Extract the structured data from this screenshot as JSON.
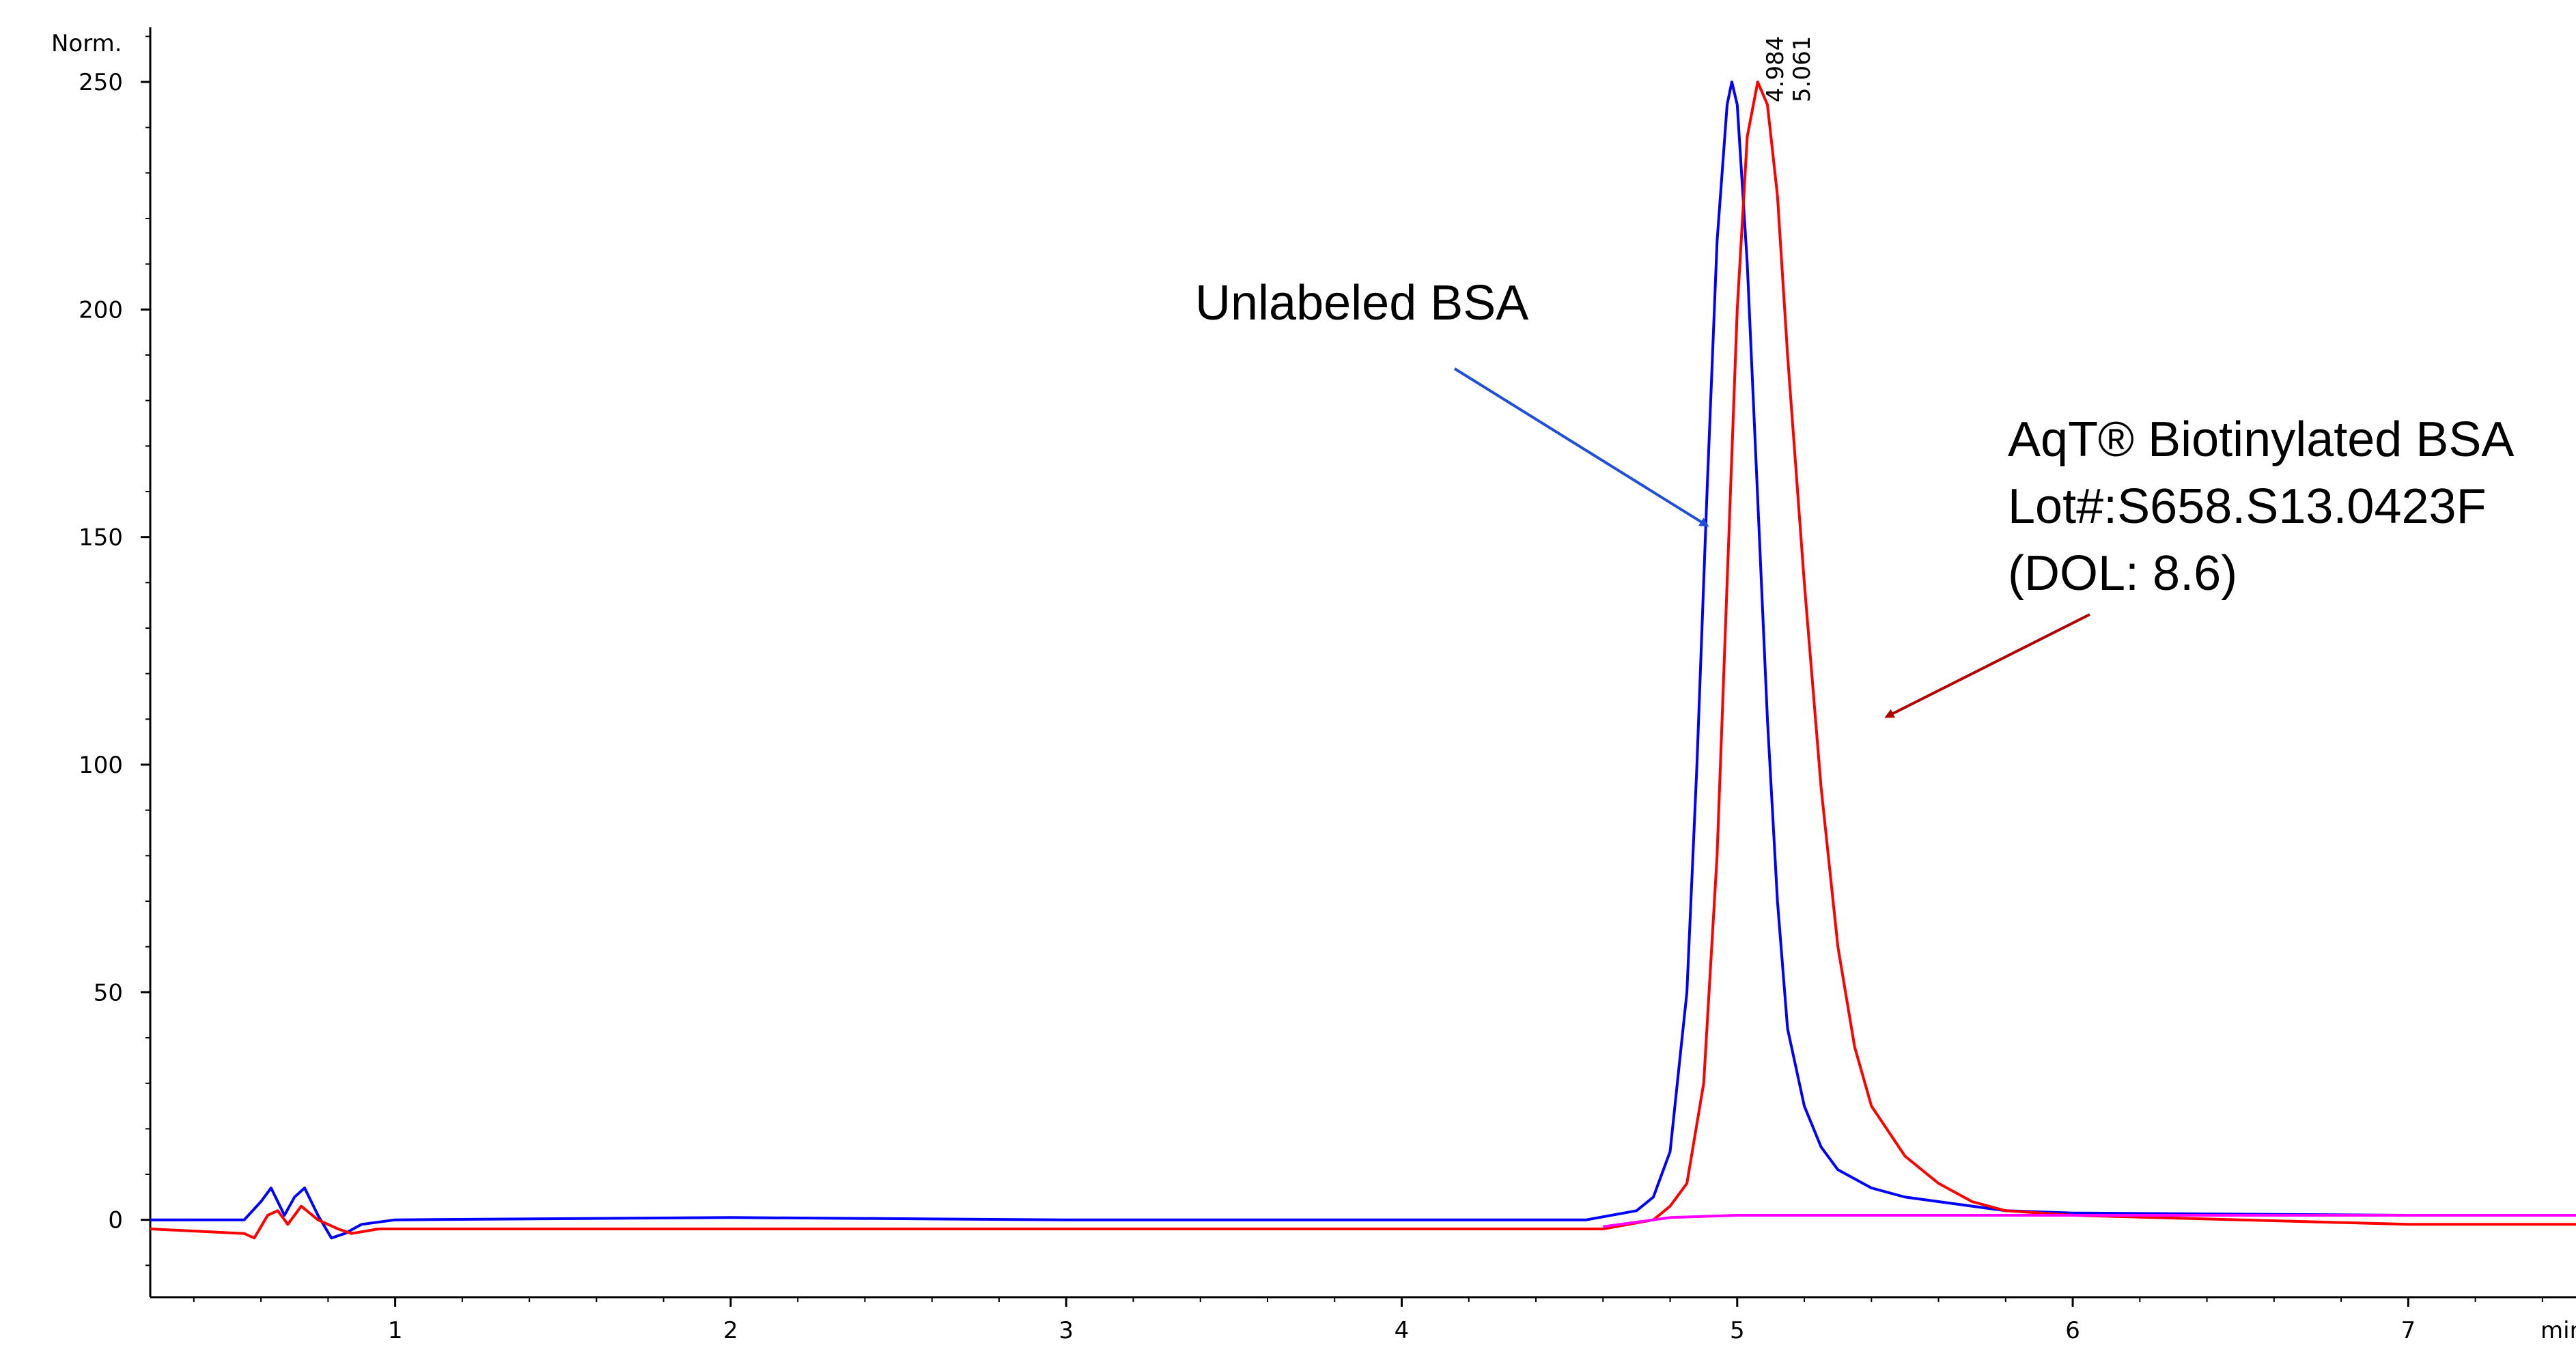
{
  "chart_data": {
    "type": "line",
    "y_unit_label": "Norm.",
    "x_unit_label": "min",
    "xlim": [
      0.27,
      7.5
    ],
    "ylim": [
      -17,
      262
    ],
    "x_ticks": [
      1,
      2,
      3,
      4,
      5,
      6,
      7
    ],
    "y_ticks": [
      0,
      50,
      100,
      150,
      200,
      250
    ],
    "grid": false,
    "peak_labels": [
      "4.984",
      "5.061"
    ],
    "annotations": {
      "unlabeled": "Unlabeled BSA",
      "biotin_line1": "AqT® Biotinylated BSA",
      "biotin_line2": "Lot#:S658.S13.0423F",
      "biotin_line3": "(DOL: 8.6)"
    },
    "series": [
      {
        "color": "#0000ff",
        "points": [
          [
            0.27,
            0
          ],
          [
            0.55,
            0
          ],
          [
            0.6,
            4
          ],
          [
            0.63,
            7
          ],
          [
            0.67,
            1
          ],
          [
            0.7,
            5
          ],
          [
            0.73,
            7
          ],
          [
            0.77,
            1
          ],
          [
            0.81,
            -4
          ],
          [
            0.85,
            -3
          ],
          [
            0.9,
            -1
          ],
          [
            1.0,
            0
          ],
          [
            2.0,
            0.5
          ],
          [
            3.0,
            0
          ],
          [
            4.0,
            0
          ],
          [
            4.55,
            0
          ],
          [
            4.7,
            2
          ],
          [
            4.75,
            5
          ],
          [
            4.8,
            15
          ],
          [
            4.85,
            50
          ],
          [
            4.88,
            100
          ],
          [
            4.91,
            160
          ],
          [
            4.94,
            215
          ],
          [
            4.97,
            245
          ],
          [
            4.984,
            250
          ],
          [
            5.0,
            245
          ],
          [
            5.03,
            210
          ],
          [
            5.06,
            160
          ],
          [
            5.09,
            110
          ],
          [
            5.12,
            70
          ],
          [
            5.15,
            42
          ],
          [
            5.2,
            25
          ],
          [
            5.25,
            16
          ],
          [
            5.3,
            11
          ],
          [
            5.4,
            7
          ],
          [
            5.5,
            5
          ],
          [
            5.6,
            4
          ],
          [
            5.8,
            2
          ],
          [
            6.0,
            1.5
          ],
          [
            7.0,
            1
          ],
          [
            7.5,
            1
          ]
        ]
      },
      {
        "color": "#ff0000",
        "points": [
          [
            0.27,
            -2
          ],
          [
            0.55,
            -3
          ],
          [
            0.58,
            -4
          ],
          [
            0.62,
            1
          ],
          [
            0.65,
            2
          ],
          [
            0.68,
            -1
          ],
          [
            0.72,
            3
          ],
          [
            0.77,
            0
          ],
          [
            0.83,
            -2
          ],
          [
            0.87,
            -3
          ],
          [
            0.95,
            -2
          ],
          [
            1.0,
            -2
          ],
          [
            4.6,
            -2
          ],
          [
            4.75,
            0
          ],
          [
            4.8,
            3
          ],
          [
            4.85,
            8
          ],
          [
            4.9,
            30
          ],
          [
            4.94,
            80
          ],
          [
            4.97,
            140
          ],
          [
            5.0,
            200
          ],
          [
            5.03,
            238
          ],
          [
            5.061,
            250
          ],
          [
            5.09,
            245
          ],
          [
            5.12,
            225
          ],
          [
            5.15,
            190
          ],
          [
            5.2,
            140
          ],
          [
            5.25,
            95
          ],
          [
            5.3,
            60
          ],
          [
            5.35,
            38
          ],
          [
            5.4,
            25
          ],
          [
            5.5,
            14
          ],
          [
            5.6,
            8
          ],
          [
            5.7,
            4
          ],
          [
            5.8,
            2
          ],
          [
            6.0,
            1
          ],
          [
            6.5,
            0
          ],
          [
            7.0,
            -1
          ],
          [
            7.5,
            -1
          ]
        ]
      },
      {
        "color": "#ff00ff",
        "points": [
          [
            4.6,
            -1.5
          ],
          [
            4.8,
            0.5
          ],
          [
            5.0,
            1
          ],
          [
            5.5,
            1
          ],
          [
            6.0,
            1
          ],
          [
            7.0,
            1
          ],
          [
            7.5,
            1
          ]
        ]
      }
    ]
  }
}
